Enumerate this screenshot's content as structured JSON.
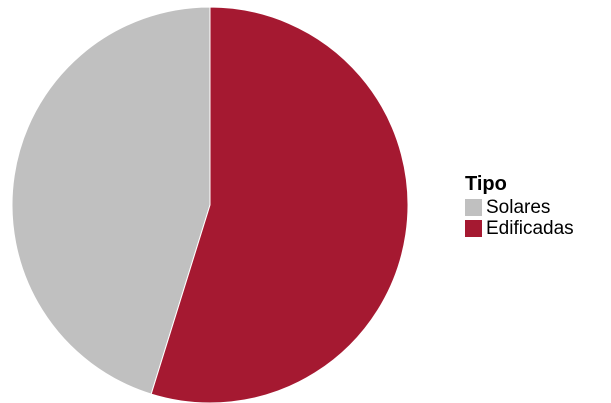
{
  "chart_data": {
    "type": "pie",
    "legend": {
      "title": "Tipo",
      "placement": "right"
    },
    "slices": [
      {
        "label": "Solares",
        "value": 45.2,
        "color": "#c0c0c0"
      },
      {
        "label": "Edificadas",
        "value": 54.8,
        "color": "#a51931"
      }
    ],
    "start_angle_deg": 0,
    "direction": "counterclockwise",
    "slice_border_color": "#ffffff"
  }
}
